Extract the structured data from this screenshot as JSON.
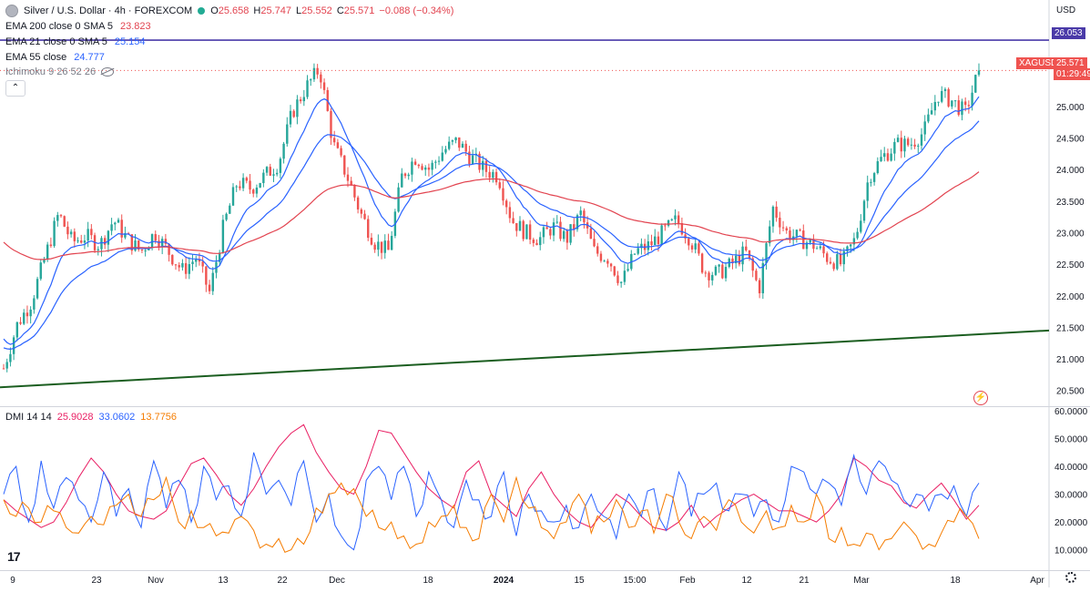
{
  "header": {
    "symbol": "Silver / U.S. Dollar · 4h · FOREXCOM",
    "ohlc": {
      "o_label": "O",
      "o": "25.658",
      "h_label": "H",
      "h": "25.747",
      "l_label": "L",
      "l": "25.552",
      "c_label": "C",
      "c": "25.571",
      "change": "−0.088 (−0.34%)"
    },
    "indicators": [
      {
        "label": "EMA 200 close 0 SMA 5",
        "value": "23.823",
        "color": "#e2434f"
      },
      {
        "label": "EMA 21 close 0 SMA 5",
        "value": "25.154",
        "color": "#2962ff"
      },
      {
        "label": "EMA 55 close",
        "value": "24.777",
        "color": "#2962ff"
      },
      {
        "label": "Ichimoku 9 26 52 26",
        "value": "",
        "color": "#787b86"
      }
    ],
    "currency": "USD"
  },
  "price_tags": {
    "resistance": "26.053",
    "symbol_tag": "XAGUSD",
    "last_price": "25.571",
    "countdown": "01:29:49"
  },
  "dmi_header": {
    "label": "DMI 14 14",
    "adx": "25.9028",
    "plus_di": "33.0602",
    "minus_di": "13.7756"
  },
  "colors": {
    "up": "#26a69a",
    "down": "#ef5350",
    "ema200": "#e2434f",
    "ema21": "#2962ff",
    "ema55": "#2962ff",
    "resistance": "#4a3aa8",
    "trendline": "#1b5e20",
    "adx": "#e91e63",
    "plus_di": "#2962ff",
    "minus_di": "#f57c00"
  },
  "icons": [
    "symbol-icon",
    "eye-slash-icon",
    "flash-icon",
    "gear-icon",
    "tradingview-logo"
  ],
  "chart_data": [
    {
      "type": "candlestick",
      "title": "Silver / U.S. Dollar · 4h · FOREXCOM",
      "y_axis": {
        "ticks": [
          20.5,
          21.0,
          21.5,
          22.0,
          22.5,
          23.0,
          23.5,
          24.0,
          24.5,
          25.0
        ],
        "tick_labels": [
          "20.500",
          "21.000",
          "21.500",
          "22.000",
          "22.500",
          "23.000",
          "23.500",
          "24.000",
          "24.500",
          "25.000"
        ],
        "range": [
          20.25,
          26.4
        ],
        "side": "right"
      },
      "x_axis": {
        "tick_labels": [
          "9",
          "23",
          "Nov",
          "13",
          "22",
          "Dec",
          "18",
          "2024",
          "15",
          "15:00",
          "Feb",
          "12",
          "21",
          "Mar",
          "18",
          "Apr"
        ]
      },
      "close_path": [
        {
          "d": "Oct 9",
          "p": 20.85
        },
        {
          "d": "Oct 11",
          "p": 21.55
        },
        {
          "d": "Oct 14",
          "p": 21.9
        },
        {
          "d": "Oct 17",
          "p": 22.6
        },
        {
          "d": "Oct 19",
          "p": 23.3
        },
        {
          "d": "Oct 21",
          "p": 22.85
        },
        {
          "d": "Oct 24",
          "p": 22.95
        },
        {
          "d": "Oct 26",
          "p": 22.8
        },
        {
          "d": "Oct 28",
          "p": 23.2
        },
        {
          "d": "Oct 31",
          "p": 22.9
        },
        {
          "d": "Nov 2",
          "p": 22.7
        },
        {
          "d": "Nov 4",
          "p": 23.0
        },
        {
          "d": "Nov 7",
          "p": 22.7
        },
        {
          "d": "Nov 9",
          "p": 22.4
        },
        {
          "d": "Nov 11",
          "p": 22.6
        },
        {
          "d": "Nov 13",
          "p": 22.05
        },
        {
          "d": "Nov 15",
          "p": 23.1
        },
        {
          "d": "Nov 17",
          "p": 23.8
        },
        {
          "d": "Nov 20",
          "p": 23.7
        },
        {
          "d": "Nov 22",
          "p": 23.9
        },
        {
          "d": "Nov 24",
          "p": 24.1
        },
        {
          "d": "Nov 27",
          "p": 24.9
        },
        {
          "d": "Nov 29",
          "p": 25.3
        },
        {
          "d": "Dec 1",
          "p": 25.6
        },
        {
          "d": "Dec 4",
          "p": 24.4
        },
        {
          "d": "Dec 6",
          "p": 23.9
        },
        {
          "d": "Dec 8",
          "p": 23.3
        },
        {
          "d": "Dec 11",
          "p": 22.85
        },
        {
          "d": "Dec 13",
          "p": 22.7
        },
        {
          "d": "Dec 14",
          "p": 23.9
        },
        {
          "d": "Dec 16",
          "p": 24.2
        },
        {
          "d": "Dec 18",
          "p": 24.0
        },
        {
          "d": "Dec 21",
          "p": 24.3
        },
        {
          "d": "Dec 24",
          "p": 24.45
        },
        {
          "d": "Dec 27",
          "p": 24.2
        },
        {
          "d": "Dec 29",
          "p": 24.0
        },
        {
          "d": "Jan 1",
          "p": 23.9
        },
        {
          "d": "Jan 3",
          "p": 23.2
        },
        {
          "d": "Jan 5",
          "p": 23.0
        },
        {
          "d": "Jan 8",
          "p": 22.9
        },
        {
          "d": "Jan 10",
          "p": 23.1
        },
        {
          "d": "Jan 12",
          "p": 22.9
        },
        {
          "d": "Jan 15",
          "p": 23.3
        },
        {
          "d": "Jan 17",
          "p": 22.7
        },
        {
          "d": "Jan 19",
          "p": 22.6
        },
        {
          "d": "Jan 22",
          "p": 22.2
        },
        {
          "d": "Jan 24",
          "p": 22.7
        },
        {
          "d": "Jan 26",
          "p": 22.8
        },
        {
          "d": "Jan 29",
          "p": 23.0
        },
        {
          "d": "Jan 31",
          "p": 23.2
        },
        {
          "d": "Feb 2",
          "p": 22.9
        },
        {
          "d": "Feb 5",
          "p": 22.4
        },
        {
          "d": "Feb 7",
          "p": 22.35
        },
        {
          "d": "Feb 9",
          "p": 22.5
        },
        {
          "d": "Feb 12",
          "p": 22.7
        },
        {
          "d": "Feb 14",
          "p": 22.1
        },
        {
          "d": "Feb 16",
          "p": 23.4
        },
        {
          "d": "Feb 19",
          "p": 23.0
        },
        {
          "d": "Feb 21",
          "p": 22.9
        },
        {
          "d": "Feb 23",
          "p": 22.8
        },
        {
          "d": "Feb 26",
          "p": 22.6
        },
        {
          "d": "Feb 28",
          "p": 22.5
        },
        {
          "d": "Mar 1",
          "p": 22.9
        },
        {
          "d": "Mar 4",
          "p": 23.9
        },
        {
          "d": "Mar 6",
          "p": 24.2
        },
        {
          "d": "Mar 8",
          "p": 24.4
        },
        {
          "d": "Mar 11",
          "p": 24.4
        },
        {
          "d": "Mar 13",
          "p": 24.6
        },
        {
          "d": "Mar 15",
          "p": 25.2
        },
        {
          "d": "Mar 18",
          "p": 25.1
        },
        {
          "d": "Mar 20",
          "p": 24.9
        },
        {
          "d": "Mar 21",
          "p": 25.57
        }
      ],
      "ema21_last": 25.154,
      "ema55_last": 24.777,
      "ema200_last": 23.823,
      "resistance_line": 26.053,
      "trendline": {
        "start": 20.55,
        "end": 21.45
      },
      "last_price": 25.571
    },
    {
      "type": "line",
      "title": "DMI 14 14",
      "y_axis": {
        "ticks": [
          10,
          20,
          30,
          40,
          50,
          60
        ],
        "tick_labels": [
          "10.0000",
          "20.0000",
          "30.0000",
          "40.0000",
          "50.0000",
          "60.0000"
        ],
        "range": [
          3,
          61
        ]
      },
      "series": [
        {
          "name": "ADX",
          "last": 25.9028,
          "values": [
            28,
            24,
            21,
            18,
            20,
            27,
            36,
            43,
            38,
            30,
            24,
            22,
            21,
            24,
            33,
            41,
            43,
            37,
            30,
            26,
            32,
            40,
            47,
            52,
            55,
            45,
            38,
            32,
            30,
            40,
            53,
            52,
            45,
            38,
            32,
            28,
            25,
            38,
            42,
            30,
            26,
            22,
            32,
            38,
            30,
            24,
            20,
            18,
            24,
            30,
            27,
            22,
            18,
            17,
            20,
            26,
            18,
            22,
            25,
            28,
            30,
            27,
            24,
            24,
            22,
            20,
            24,
            30,
            43,
            40,
            35,
            33,
            27,
            25,
            30,
            34,
            28,
            21,
            26
          ]
        },
        {
          "name": "+DI",
          "last": 33.0602,
          "values": [
            30,
            40,
            20,
            42,
            25,
            36,
            28,
            20,
            38,
            22,
            32,
            18,
            42,
            25,
            35,
            20,
            40,
            28,
            33,
            22,
            45,
            30,
            35,
            26,
            42,
            20,
            30,
            15,
            10,
            35,
            40,
            28,
            40,
            22,
            38,
            28,
            18,
            35,
            28,
            22,
            38,
            15,
            30,
            24,
            20,
            26,
            18,
            30,
            22,
            14,
            30,
            22,
            32,
            17,
            38,
            22,
            30,
            34,
            24,
            30,
            22,
            28,
            20,
            40,
            38,
            30,
            34,
            26,
            44,
            30,
            42,
            35,
            28,
            30,
            24,
            30,
            33,
            22,
            34
          ]
        },
        {
          "name": "−DI",
          "last": 13.7756,
          "values": [
            28,
            22,
            25,
            20,
            24,
            18,
            16,
            22,
            19,
            26,
            30,
            22,
            28,
            36,
            20,
            24,
            18,
            15,
            16,
            22,
            17,
            12,
            14,
            10,
            12,
            25,
            30,
            34,
            32,
            22,
            18,
            20,
            15,
            12,
            20,
            22,
            26,
            18,
            14,
            30,
            20,
            36,
            25,
            18,
            14,
            20,
            30,
            16,
            20,
            28,
            18,
            24,
            16,
            30,
            20,
            14,
            22,
            17,
            28,
            20,
            16,
            24,
            18,
            26,
            20,
            30,
            14,
            18,
            12,
            16,
            10,
            14,
            20,
            15,
            12,
            16,
            20,
            22,
            14
          ]
        }
      ]
    }
  ]
}
